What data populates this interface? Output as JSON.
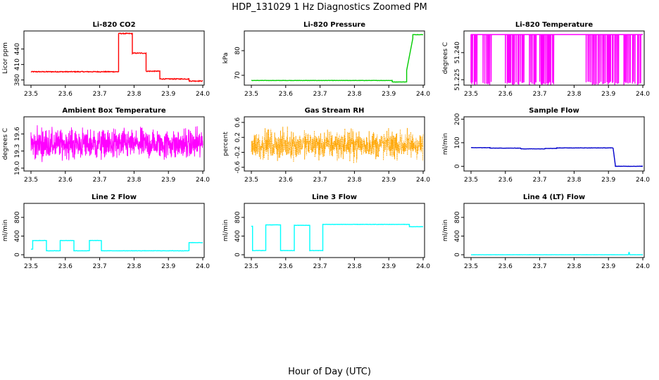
{
  "figure": {
    "title": "HDP_131029  1 Hz Diagnostics Zoomed PM",
    "xlabel": "Hour of Day (UTC)"
  },
  "chart_data": [
    {
      "type": "line",
      "title": "Li-820 CO2",
      "ylabel": "Licor ppm",
      "color": "#ff0000",
      "xlim": [
        23.5,
        24.0
      ],
      "ylim": [
        370,
        475
      ],
      "xticks": [
        "23.5",
        "23.6",
        "23.7",
        "23.8",
        "23.9",
        "24.0"
      ],
      "yticks": [
        {
          "v": 380,
          "label": "380"
        },
        {
          "v": 410,
          "label": "410"
        },
        {
          "v": 440,
          "label": "440"
        }
      ],
      "noise": 0.8,
      "noise_kind": "band",
      "segments": [
        {
          "x": [
            23.5,
            23.755
          ],
          "y": 396
        },
        {
          "x": [
            23.755,
            23.795
          ],
          "y": 470
        },
        {
          "x": [
            23.795,
            23.835
          ],
          "y": 432
        },
        {
          "x": [
            23.835,
            23.875
          ],
          "y": 397
        },
        {
          "x": [
            23.875,
            23.96
          ],
          "y": 382
        },
        {
          "x": [
            23.96,
            24.0
          ],
          "y": 378
        }
      ]
    },
    {
      "type": "line",
      "title": "Li-820 Pressure",
      "ylabel": "kPa",
      "color": "#00cc00",
      "xlim": [
        23.5,
        24.0
      ],
      "ylim": [
        66,
        88
      ],
      "xticks": [
        "23.5",
        "23.6",
        "23.7",
        "23.8",
        "23.9",
        "24.0"
      ],
      "yticks": [
        {
          "v": 70,
          "label": "70"
        },
        {
          "v": 80,
          "label": "80"
        }
      ],
      "noise": 0.05,
      "noise_kind": "band",
      "segments": [
        {
          "x": [
            23.5,
            23.91
          ],
          "y": 67.9
        },
        {
          "x": [
            23.91,
            23.952
          ],
          "y": 67.3
        },
        {
          "x": [
            23.952,
            23.97
          ],
          "y": 72,
          "y2": 85
        },
        {
          "x": [
            23.97,
            24.0
          ],
          "y": 86.5
        }
      ]
    },
    {
      "type": "line",
      "title": "Li-820 Temperature",
      "ylabel": "degrees C",
      "color": "#ff00ff",
      "xlim": [
        23.5,
        24.0
      ],
      "ylim": [
        51.222,
        51.252
      ],
      "xticks": [
        "23.5",
        "23.6",
        "23.7",
        "23.8",
        "23.9",
        "24.0"
      ],
      "yticks": [
        {
          "v": 51.225,
          "label": "51.225"
        },
        {
          "v": 51.24,
          "label": "51.240"
        }
      ],
      "noise_kind": "drops",
      "base": 51.25,
      "low": 51.222,
      "drop_ranges": [
        [
          23.5,
          23.52
        ],
        [
          23.535,
          23.56
        ],
        [
          23.6,
          23.655
        ],
        [
          23.67,
          23.69
        ],
        [
          23.7,
          23.745
        ],
        [
          23.835,
          23.865
        ],
        [
          23.87,
          23.93
        ],
        [
          23.945,
          23.965
        ],
        [
          23.97,
          23.98
        ],
        [
          23.985,
          23.995
        ]
      ]
    },
    {
      "type": "line",
      "title": "Ambient Box Temperature",
      "ylabel": "degrees C",
      "color": "#ff00ff",
      "xlim": [
        23.5,
        24.0
      ],
      "ylim": [
        18.95,
        19.9
      ],
      "xticks": [
        "23.5",
        "23.6",
        "23.7",
        "23.8",
        "23.9",
        "24.0"
      ],
      "yticks": [
        {
          "v": 19.0,
          "label": "19.0"
        },
        {
          "v": 19.3,
          "label": "19.3"
        },
        {
          "v": 19.6,
          "label": "19.6"
        }
      ],
      "noise_kind": "spiky",
      "base": 19.42,
      "amp": 0.38,
      "segments": [
        {
          "x": [
            23.5,
            24.0
          ],
          "y": 19.42
        }
      ]
    },
    {
      "type": "line",
      "title": "Gas Stream RH",
      "ylabel": "percent",
      "color": "#ffa500",
      "dotted": true,
      "xlim": [
        23.5,
        24.0
      ],
      "ylim": [
        -0.7,
        0.75
      ],
      "xticks": [
        "23.5",
        "23.6",
        "23.7",
        "23.8",
        "23.9",
        "24.0"
      ],
      "yticks": [
        {
          "v": -0.6,
          "label": "-0.6"
        },
        {
          "v": -0.2,
          "label": "-0.2"
        },
        {
          "v": 0.2,
          "label": "0.2"
        },
        {
          "v": 0.6,
          "label": "0.6"
        }
      ],
      "noise_kind": "spiky",
      "base": 0.0,
      "amp": 0.55,
      "segments": [
        {
          "x": [
            23.5,
            24.0
          ],
          "y": 0.0
        }
      ]
    },
    {
      "type": "line",
      "title": "Sample Flow",
      "ylabel": "ml/min",
      "color": "#0000cc",
      "xlim": [
        23.5,
        24.0
      ],
      "ylim": [
        -20,
        210
      ],
      "xticks": [
        "23.5",
        "23.6",
        "23.7",
        "23.8",
        "23.9",
        "24.0"
      ],
      "yticks": [
        {
          "v": 0,
          "label": "0"
        },
        {
          "v": 100,
          "label": "100"
        },
        {
          "v": 200,
          "label": "200"
        }
      ],
      "noise": 0.6,
      "noise_kind": "band",
      "segments": [
        {
          "x": [
            23.5,
            23.555
          ],
          "y": 79
        },
        {
          "x": [
            23.555,
            23.645
          ],
          "y": 77
        },
        {
          "x": [
            23.645,
            23.715
          ],
          "y": 74
        },
        {
          "x": [
            23.715,
            23.75
          ],
          "y": 76
        },
        {
          "x": [
            23.75,
            23.9135
          ],
          "y": 78
        },
        {
          "x": [
            23.9135,
            23.92
          ],
          "y": 78,
          "y2": 5
        },
        {
          "x": [
            23.92,
            24.0
          ],
          "y": 0
        }
      ]
    },
    {
      "type": "line",
      "title": "Line 2 Flow",
      "ylabel": "ml/min",
      "color": "#00ffff",
      "xlim": [
        23.5,
        24.0
      ],
      "ylim": [
        -60,
        1100
      ],
      "xticks": [
        "23.5",
        "23.6",
        "23.7",
        "23.8",
        "23.9",
        "24.0"
      ],
      "yticks": [
        {
          "v": 0,
          "label": "0"
        },
        {
          "v": 400,
          "label": "400"
        },
        {
          "v": 800,
          "label": "800"
        }
      ],
      "noise": 3,
      "noise_kind": "band",
      "segments": [
        {
          "x": [
            23.5,
            23.505
          ],
          "y": 120
        },
        {
          "x": [
            23.505,
            23.545
          ],
          "y": 305
        },
        {
          "x": [
            23.545,
            23.585
          ],
          "y": 85
        },
        {
          "x": [
            23.585,
            23.625
          ],
          "y": 305
        },
        {
          "x": [
            23.625,
            23.67
          ],
          "y": 85
        },
        {
          "x": [
            23.67,
            23.705
          ],
          "y": 305
        },
        {
          "x": [
            23.705,
            23.96
          ],
          "y": 85
        },
        {
          "x": [
            23.96,
            24.0
          ],
          "y": 260
        }
      ]
    },
    {
      "type": "line",
      "title": "Line 3 Flow",
      "ylabel": "ml/min",
      "color": "#00ffff",
      "xlim": [
        23.5,
        24.0
      ],
      "ylim": [
        -60,
        1100
      ],
      "xticks": [
        "23.5",
        "23.6",
        "23.7",
        "23.8",
        "23.9",
        "24.0"
      ],
      "yticks": [
        {
          "v": 0,
          "label": "0"
        },
        {
          "v": 400,
          "label": "400"
        },
        {
          "v": 800,
          "label": "800"
        }
      ],
      "noise": 3,
      "noise_kind": "band",
      "segments": [
        {
          "x": [
            23.5,
            23.5035
          ],
          "y": 610
        },
        {
          "x": [
            23.5035,
            23.542
          ],
          "y": 90
        },
        {
          "x": [
            23.542,
            23.585
          ],
          "y": 640
        },
        {
          "x": [
            23.585,
            23.625
          ],
          "y": 90
        },
        {
          "x": [
            23.625,
            23.67
          ],
          "y": 630
        },
        {
          "x": [
            23.67,
            23.708
          ],
          "y": 90
        },
        {
          "x": [
            23.708,
            23.96
          ],
          "y": 650
        },
        {
          "x": [
            23.96,
            24.0
          ],
          "y": 600
        }
      ]
    },
    {
      "type": "line",
      "title": "Line 4 (LT) Flow",
      "ylabel": "ml/min",
      "color": "#00ffff",
      "xlim": [
        23.5,
        24.0
      ],
      "ylim": [
        -60,
        1100
      ],
      "xticks": [
        "23.5",
        "23.6",
        "23.7",
        "23.8",
        "23.9",
        "24.0"
      ],
      "yticks": [
        {
          "v": 0,
          "label": "0"
        },
        {
          "v": 400,
          "label": "400"
        },
        {
          "v": 800,
          "label": "800"
        }
      ],
      "noise": 1,
      "noise_kind": "band",
      "segments": [
        {
          "x": [
            23.5,
            23.958
          ],
          "y": 0
        },
        {
          "x": [
            23.958,
            23.96
          ],
          "y": 0,
          "y2": 60
        },
        {
          "x": [
            23.96,
            23.962
          ],
          "y": 60,
          "y2": 0
        },
        {
          "x": [
            23.962,
            24.0
          ],
          "y": 0
        }
      ]
    }
  ]
}
